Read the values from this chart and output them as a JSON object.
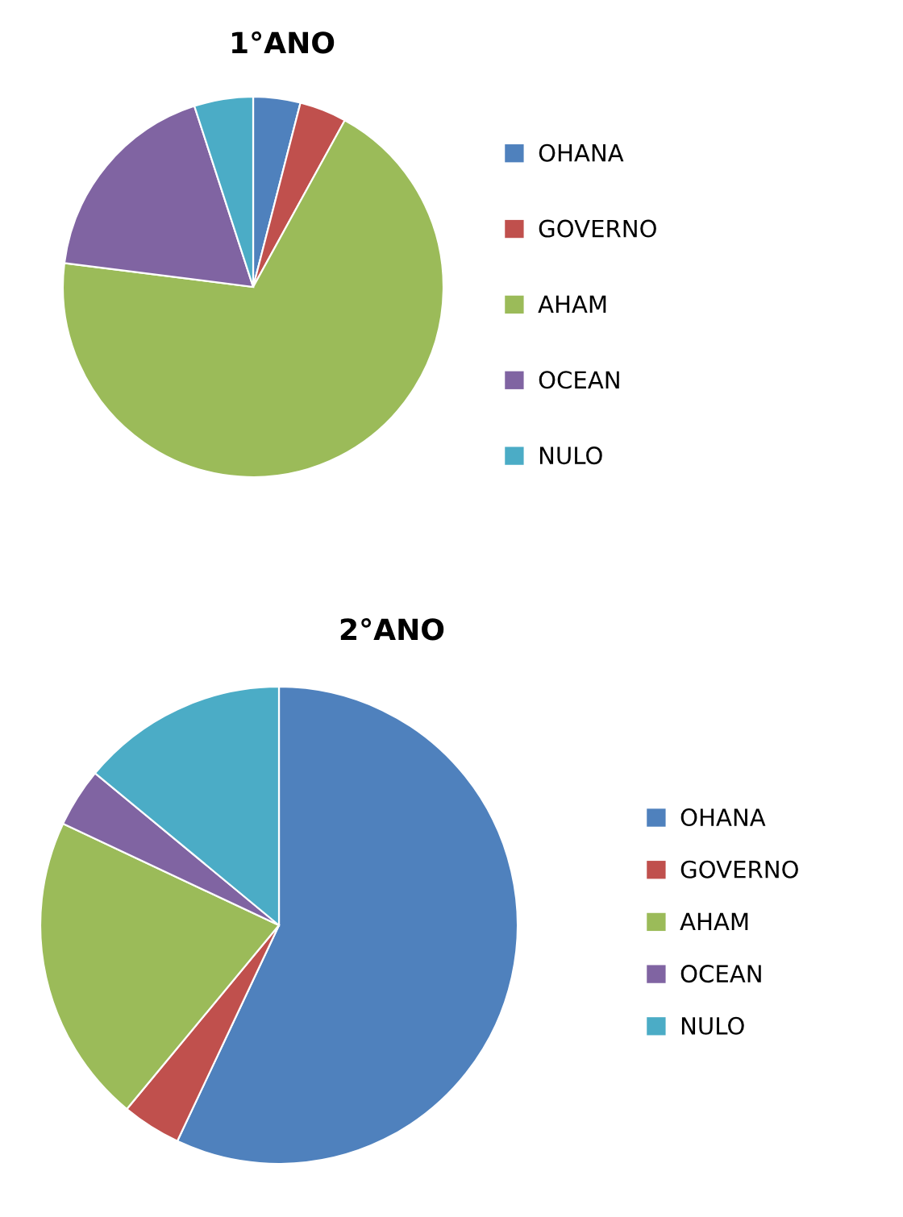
{
  "chart_data": [
    {
      "type": "pie",
      "title": "1°ANO",
      "categories": [
        "OHANA",
        "GOVERNO",
        "AHAM",
        "OCEAN",
        "NULO"
      ],
      "values": [
        4,
        4,
        69,
        18,
        5
      ],
      "colors": [
        "#4f81bd",
        "#c0504d",
        "#9bbb59",
        "#8064a2",
        "#4bacc6"
      ],
      "legend": "right"
    },
    {
      "type": "pie",
      "title": "2°ANO",
      "categories": [
        "OHANA",
        "GOVERNO",
        "AHAM",
        "OCEAN",
        "NULO"
      ],
      "values": [
        57,
        4,
        21,
        4,
        14
      ],
      "colors": [
        "#4f81bd",
        "#c0504d",
        "#9bbb59",
        "#8064a2",
        "#4bacc6"
      ],
      "legend": "right"
    }
  ]
}
